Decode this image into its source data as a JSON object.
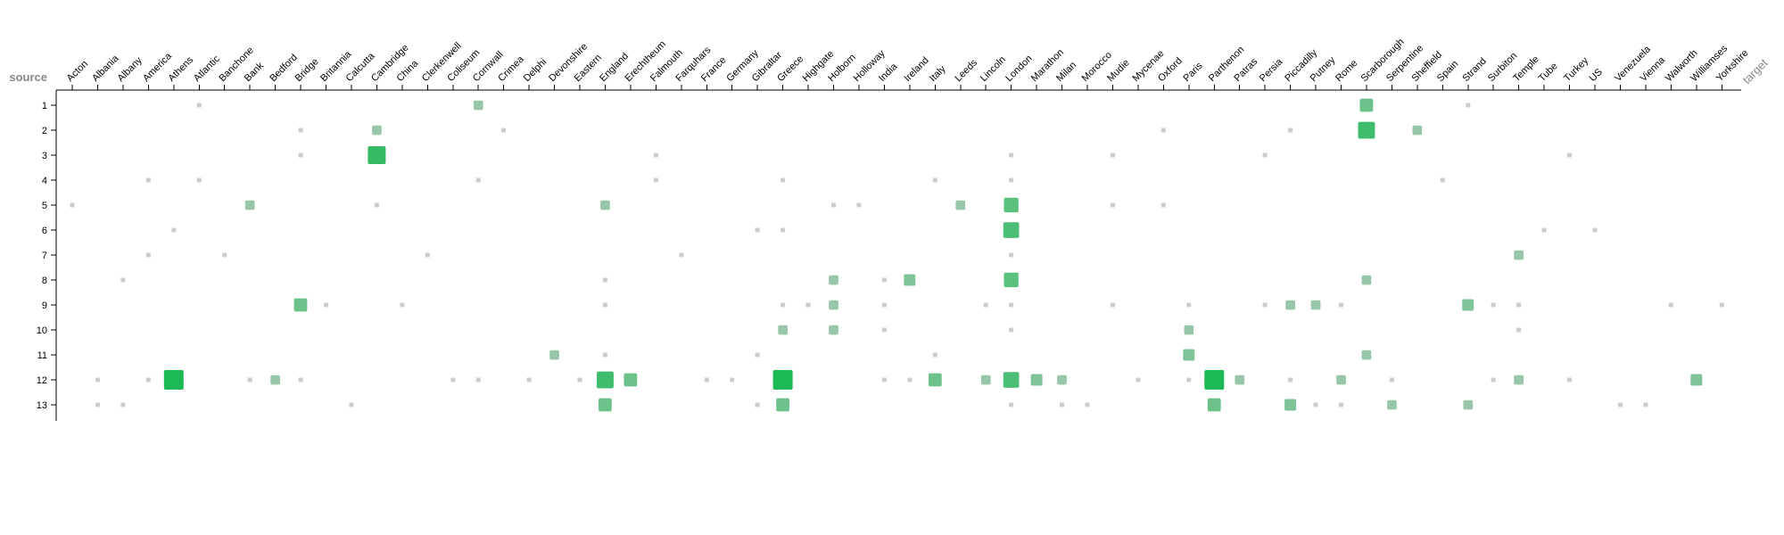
{
  "chart_data": {
    "type": "heatmap",
    "title": "",
    "xlabel": "target",
    "ylabel": "source",
    "x_categories": [
      "Acton",
      "Albania",
      "Albany",
      "America",
      "Athens",
      "Atlantic",
      "Banchone",
      "Bank",
      "Bedford",
      "Bridge",
      "Britannia",
      "Calcutta",
      "Cambridge",
      "China",
      "Clerkenwell",
      "Coliseum",
      "Cornwall",
      "Crimea",
      "Delphi",
      "Devonshire",
      "Eastern",
      "England",
      "Erechtheum",
      "Falmouth",
      "Farquhars",
      "France",
      "Germany",
      "Gibraltar",
      "Greece",
      "Highgate",
      "Holborn",
      "Holloway",
      "India",
      "Ireland",
      "Italy",
      "Leeds",
      "Lincoln",
      "London",
      "Marathon",
      "Milan",
      "Morocco",
      "Mudie",
      "Mycenae",
      "Oxford",
      "Paris",
      "Parthenon",
      "Patras",
      "Persia",
      "Piccadilly",
      "Putney",
      "Rome",
      "Scarborough",
      "Serpentine",
      "Sheffield",
      "Spain",
      "Strand",
      "Surbiton",
      "Temple",
      "Tube",
      "Turkey",
      "US",
      "Venezuela",
      "Vienna",
      "Walworth",
      "Williamses",
      "Yorkshire"
    ],
    "y_categories": [
      "1",
      "2",
      "3",
      "4",
      "5",
      "6",
      "7",
      "8",
      "9",
      "10",
      "11",
      "12",
      "13"
    ],
    "legend": "none",
    "colors": {
      "low": "#cccccc",
      "high": "#1db954",
      "axis": "#000000",
      "axis_name": "#888888"
    },
    "value_range": [
      1,
      10
    ],
    "cells": [
      {
        "s": "1",
        "t": "Atlantic",
        "v": 1
      },
      {
        "s": "1",
        "t": "Cornwall",
        "v": 2
      },
      {
        "s": "1",
        "t": "Scarborough",
        "v": 4
      },
      {
        "s": "1",
        "t": "Strand",
        "v": 1
      },
      {
        "s": "2",
        "t": "Bridge",
        "v": 1
      },
      {
        "s": "2",
        "t": "Cambridge",
        "v": 2
      },
      {
        "s": "2",
        "t": "Crimea",
        "v": 1
      },
      {
        "s": "2",
        "t": "Oxford",
        "v": 1
      },
      {
        "s": "2",
        "t": "Piccadilly",
        "v": 1
      },
      {
        "s": "2",
        "t": "Scarborough",
        "v": 7
      },
      {
        "s": "2",
        "t": "Sheffield",
        "v": 2
      },
      {
        "s": "3",
        "t": "Bridge",
        "v": 1
      },
      {
        "s": "3",
        "t": "Cambridge",
        "v": 8
      },
      {
        "s": "3",
        "t": "Falmouth",
        "v": 1
      },
      {
        "s": "3",
        "t": "London",
        "v": 1
      },
      {
        "s": "3",
        "t": "Mudie",
        "v": 1
      },
      {
        "s": "3",
        "t": "Persia",
        "v": 1
      },
      {
        "s": "3",
        "t": "Turkey",
        "v": 1
      },
      {
        "s": "4",
        "t": "America",
        "v": 1
      },
      {
        "s": "4",
        "t": "Atlantic",
        "v": 1
      },
      {
        "s": "4",
        "t": "Cornwall",
        "v": 1
      },
      {
        "s": "4",
        "t": "Falmouth",
        "v": 1
      },
      {
        "s": "4",
        "t": "Greece",
        "v": 1
      },
      {
        "s": "4",
        "t": "Italy",
        "v": 1
      },
      {
        "s": "4",
        "t": "London",
        "v": 1
      },
      {
        "s": "4",
        "t": "Spain",
        "v": 1
      },
      {
        "s": "5",
        "t": "Acton",
        "v": 1
      },
      {
        "s": "5",
        "t": "Bank",
        "v": 2
      },
      {
        "s": "5",
        "t": "Cambridge",
        "v": 1
      },
      {
        "s": "5",
        "t": "England",
        "v": 2
      },
      {
        "s": "5",
        "t": "Holborn",
        "v": 1
      },
      {
        "s": "5",
        "t": "Holloway",
        "v": 1
      },
      {
        "s": "5",
        "t": "Leeds",
        "v": 2
      },
      {
        "s": "5",
        "t": "London",
        "v": 5
      },
      {
        "s": "5",
        "t": "Mudie",
        "v": 1
      },
      {
        "s": "5",
        "t": "Oxford",
        "v": 1
      },
      {
        "s": "6",
        "t": "Athens",
        "v": 1
      },
      {
        "s": "6",
        "t": "Gibraltar",
        "v": 1
      },
      {
        "s": "6",
        "t": "Greece",
        "v": 1
      },
      {
        "s": "6",
        "t": "London",
        "v": 6
      },
      {
        "s": "6",
        "t": "Tube",
        "v": 1
      },
      {
        "s": "6",
        "t": "US",
        "v": 1
      },
      {
        "s": "7",
        "t": "America",
        "v": 1
      },
      {
        "s": "7",
        "t": "Banchone",
        "v": 1
      },
      {
        "s": "7",
        "t": "Clerkenwell",
        "v": 1
      },
      {
        "s": "7",
        "t": "Farquhars",
        "v": 1
      },
      {
        "s": "7",
        "t": "London",
        "v": 1
      },
      {
        "s": "7",
        "t": "Temple",
        "v": 2
      },
      {
        "s": "8",
        "t": "Albany",
        "v": 1
      },
      {
        "s": "8",
        "t": "England",
        "v": 1
      },
      {
        "s": "8",
        "t": "Holborn",
        "v": 2
      },
      {
        "s": "8",
        "t": "India",
        "v": 1
      },
      {
        "s": "8",
        "t": "Ireland",
        "v": 3
      },
      {
        "s": "8",
        "t": "London",
        "v": 5
      },
      {
        "s": "8",
        "t": "Scarborough",
        "v": 2
      },
      {
        "s": "9",
        "t": "Bridge",
        "v": 4
      },
      {
        "s": "9",
        "t": "Britannia",
        "v": 1
      },
      {
        "s": "9",
        "t": "China",
        "v": 1
      },
      {
        "s": "9",
        "t": "England",
        "v": 1
      },
      {
        "s": "9",
        "t": "Greece",
        "v": 1
      },
      {
        "s": "9",
        "t": "Highgate",
        "v": 1
      },
      {
        "s": "9",
        "t": "Holborn",
        "v": 2
      },
      {
        "s": "9",
        "t": "India",
        "v": 1
      },
      {
        "s": "9",
        "t": "Lincoln",
        "v": 1
      },
      {
        "s": "9",
        "t": "London",
        "v": 1
      },
      {
        "s": "9",
        "t": "Mudie",
        "v": 1
      },
      {
        "s": "9",
        "t": "Paris",
        "v": 1
      },
      {
        "s": "9",
        "t": "Persia",
        "v": 1
      },
      {
        "s": "9",
        "t": "Piccadilly",
        "v": 2
      },
      {
        "s": "9",
        "t": "Putney",
        "v": 2
      },
      {
        "s": "9",
        "t": "Rome",
        "v": 1
      },
      {
        "s": "9",
        "t": "Strand",
        "v": 3
      },
      {
        "s": "9",
        "t": "Surbiton",
        "v": 1
      },
      {
        "s": "9",
        "t": "Temple",
        "v": 1
      },
      {
        "s": "9",
        "t": "Walworth",
        "v": 1
      },
      {
        "s": "9",
        "t": "Yorkshire",
        "v": 1
      },
      {
        "s": "10",
        "t": "Greece",
        "v": 2
      },
      {
        "s": "10",
        "t": "Holborn",
        "v": 2
      },
      {
        "s": "10",
        "t": "India",
        "v": 1
      },
      {
        "s": "10",
        "t": "London",
        "v": 1
      },
      {
        "s": "10",
        "t": "Paris",
        "v": 2
      },
      {
        "s": "10",
        "t": "Temple",
        "v": 1
      },
      {
        "s": "11",
        "t": "Devonshire",
        "v": 2
      },
      {
        "s": "11",
        "t": "England",
        "v": 1
      },
      {
        "s": "11",
        "t": "Gibraltar",
        "v": 1
      },
      {
        "s": "11",
        "t": "Italy",
        "v": 1
      },
      {
        "s": "11",
        "t": "Paris",
        "v": 3
      },
      {
        "s": "11",
        "t": "Scarborough",
        "v": 2
      },
      {
        "s": "12",
        "t": "Albania",
        "v": 1
      },
      {
        "s": "12",
        "t": "America",
        "v": 1
      },
      {
        "s": "12",
        "t": "Athens",
        "v": 10
      },
      {
        "s": "12",
        "t": "Bank",
        "v": 1
      },
      {
        "s": "12",
        "t": "Bedford",
        "v": 2
      },
      {
        "s": "12",
        "t": "Bridge",
        "v": 1
      },
      {
        "s": "12",
        "t": "Coliseum",
        "v": 1
      },
      {
        "s": "12",
        "t": "Cornwall",
        "v": 1
      },
      {
        "s": "12",
        "t": "Delphi",
        "v": 1
      },
      {
        "s": "12",
        "t": "Eastern",
        "v": 1
      },
      {
        "s": "12",
        "t": "England",
        "v": 7
      },
      {
        "s": "12",
        "t": "Erechtheum",
        "v": 4
      },
      {
        "s": "12",
        "t": "France",
        "v": 1
      },
      {
        "s": "12",
        "t": "Germany",
        "v": 1
      },
      {
        "s": "12",
        "t": "Greece",
        "v": 10
      },
      {
        "s": "12",
        "t": "India",
        "v": 1
      },
      {
        "s": "12",
        "t": "Ireland",
        "v": 1
      },
      {
        "s": "12",
        "t": "Italy",
        "v": 4
      },
      {
        "s": "12",
        "t": "Lincoln",
        "v": 2
      },
      {
        "s": "12",
        "t": "London",
        "v": 6
      },
      {
        "s": "12",
        "t": "Marathon",
        "v": 3
      },
      {
        "s": "12",
        "t": "Milan",
        "v": 2
      },
      {
        "s": "12",
        "t": "Mycenae",
        "v": 1
      },
      {
        "s": "12",
        "t": "Paris",
        "v": 1
      },
      {
        "s": "12",
        "t": "Parthenon",
        "v": 10
      },
      {
        "s": "12",
        "t": "Patras",
        "v": 2
      },
      {
        "s": "12",
        "t": "Piccadilly",
        "v": 1
      },
      {
        "s": "12",
        "t": "Rome",
        "v": 2
      },
      {
        "s": "12",
        "t": "Serpentine",
        "v": 1
      },
      {
        "s": "12",
        "t": "Surbiton",
        "v": 1
      },
      {
        "s": "12",
        "t": "Temple",
        "v": 2
      },
      {
        "s": "12",
        "t": "Turkey",
        "v": 1
      },
      {
        "s": "12",
        "t": "Williamses",
        "v": 3
      },
      {
        "s": "13",
        "t": "Albania",
        "v": 1
      },
      {
        "s": "13",
        "t": "Albany",
        "v": 1
      },
      {
        "s": "13",
        "t": "Calcutta",
        "v": 1
      },
      {
        "s": "13",
        "t": "England",
        "v": 4
      },
      {
        "s": "13",
        "t": "Gibraltar",
        "v": 1
      },
      {
        "s": "13",
        "t": "Greece",
        "v": 4
      },
      {
        "s": "13",
        "t": "London",
        "v": 1
      },
      {
        "s": "13",
        "t": "Milan",
        "v": 1
      },
      {
        "s": "13",
        "t": "Morocco",
        "v": 1
      },
      {
        "s": "13",
        "t": "Parthenon",
        "v": 4
      },
      {
        "s": "13",
        "t": "Piccadilly",
        "v": 3
      },
      {
        "s": "13",
        "t": "Putney",
        "v": 1
      },
      {
        "s": "13",
        "t": "Rome",
        "v": 1
      },
      {
        "s": "13",
        "t": "Serpentine",
        "v": 2
      },
      {
        "s": "13",
        "t": "Strand",
        "v": 2
      },
      {
        "s": "13",
        "t": "Venezuela",
        "v": 1
      },
      {
        "s": "13",
        "t": "Vienna",
        "v": 1
      }
    ]
  }
}
